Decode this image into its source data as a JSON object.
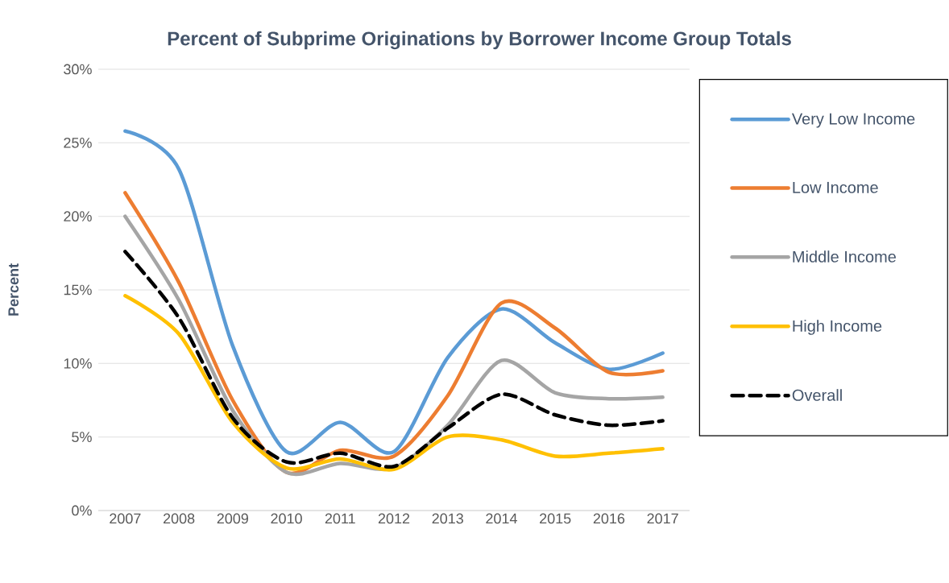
{
  "chart_data": {
    "type": "line",
    "title": "Percent of Subprime Originations by Borrower Income Group Totals",
    "ylabel": "Percent",
    "categories": [
      "2007",
      "2008",
      "2009",
      "2010",
      "2011",
      "2012",
      "2013",
      "2014",
      "2015",
      "2016",
      "2017"
    ],
    "series": [
      {
        "name": "Very Low Income",
        "color": "#5b9bd5",
        "values": [
          25.8,
          23.2,
          11.2,
          4.0,
          6.0,
          4.0,
          10.4,
          13.7,
          11.4,
          9.6,
          10.7
        ]
      },
      {
        "name": "Low Income",
        "color": "#ed7d31",
        "values": [
          21.6,
          15.5,
          7.5,
          2.6,
          4.1,
          3.7,
          7.8,
          14.1,
          12.4,
          9.4,
          9.5
        ]
      },
      {
        "name": "Middle Income",
        "color": "#a5a5a5",
        "values": [
          20.0,
          14.3,
          6.8,
          2.6,
          3.2,
          2.9,
          5.8,
          10.2,
          8.0,
          7.6,
          7.7
        ]
      },
      {
        "name": "High Income",
        "color": "#ffc000",
        "values": [
          14.6,
          12.0,
          6.0,
          2.9,
          3.5,
          2.8,
          5.0,
          4.8,
          3.7,
          3.9,
          4.2
        ]
      },
      {
        "name": "Overall",
        "color": "#000000",
        "line_style": "dashed",
        "values": [
          17.6,
          13.1,
          6.3,
          3.3,
          3.9,
          3.0,
          5.6,
          7.9,
          6.5,
          5.8,
          6.1
        ]
      }
    ],
    "ylim": [
      0,
      30
    ],
    "yticks": [
      {
        "value": 0,
        "label": "0%"
      },
      {
        "value": 5,
        "label": "5%"
      },
      {
        "value": 10,
        "label": "10%"
      },
      {
        "value": 15,
        "label": "15%"
      },
      {
        "value": 20,
        "label": "20%"
      },
      {
        "value": 25,
        "label": "25%"
      },
      {
        "value": 30,
        "label": "30%"
      }
    ],
    "grid": "y",
    "legend": "right",
    "line_style": "solid"
  }
}
